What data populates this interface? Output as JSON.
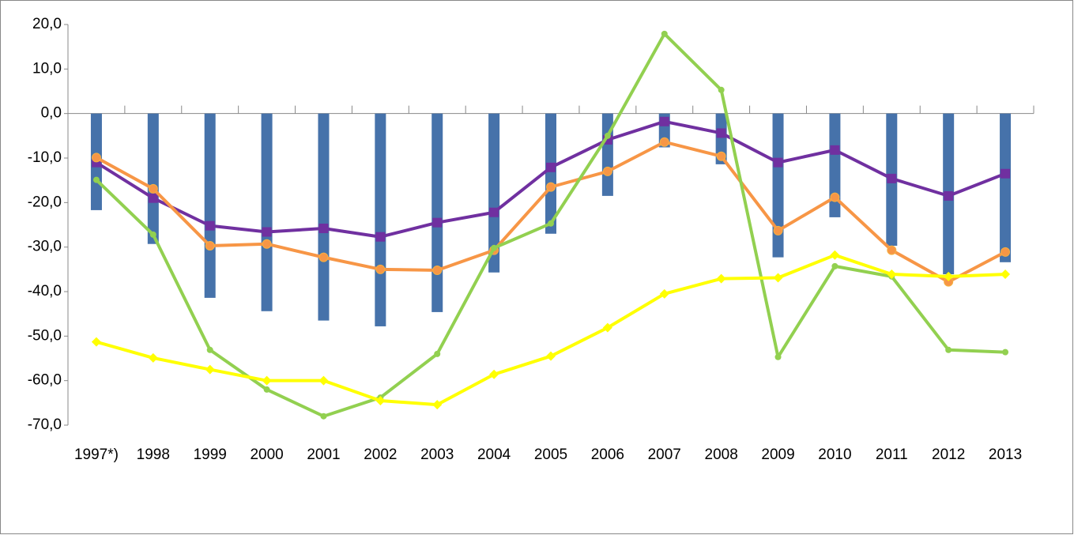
{
  "chart_data": {
    "type": "combo",
    "categories": [
      "1997*)",
      "1998",
      "1999",
      "2000",
      "2001",
      "2002",
      "2003",
      "2004",
      "2005",
      "2006",
      "2007",
      "2008",
      "2009",
      "2010",
      "2011",
      "2012",
      "2013"
    ],
    "ylim": [
      -70,
      20
    ],
    "yticks": [
      {
        "value": 20,
        "label": "20,0"
      },
      {
        "value": 10,
        "label": "10,0"
      },
      {
        "value": 0,
        "label": "0,0"
      },
      {
        "value": -10,
        "label": "-10,0"
      },
      {
        "value": -20,
        "label": "-20,0"
      },
      {
        "value": -30,
        "label": "-30,0"
      },
      {
        "value": -40,
        "label": "-40,0"
      },
      {
        "value": -50,
        "label": "-50,0"
      },
      {
        "value": -60,
        "label": "-60,0"
      },
      {
        "value": -70,
        "label": "-70,0"
      }
    ],
    "series": [
      {
        "type": "bar",
        "color": "#4672aa",
        "values": [
          -21.7,
          -29.3,
          -41.4,
          -44.4,
          -46.5,
          -47.8,
          -44.6,
          -35.7,
          -27.0,
          -18.5,
          -7.6,
          -11.4,
          -32.3,
          -23.3,
          -29.7,
          -36.1,
          -33.4
        ]
      },
      {
        "type": "line",
        "marker": "square",
        "color": "#7030a0",
        "values": [
          -11.0,
          -19.0,
          -25.2,
          -26.6,
          -25.8,
          -27.7,
          -24.5,
          -22.2,
          -12.1,
          -5.9,
          -1.8,
          -4.4,
          -11.0,
          -8.2,
          -14.6,
          -18.5,
          -13.5
        ]
      },
      {
        "type": "line",
        "marker": "circle",
        "color": "#f79646",
        "values": [
          -9.9,
          -16.9,
          -29.7,
          -29.3,
          -32.3,
          -35.0,
          -35.2,
          -30.7,
          -16.5,
          -13.0,
          -6.4,
          -9.6,
          -26.3,
          -18.8,
          -30.7,
          -37.8,
          -31.1
        ]
      },
      {
        "type": "line",
        "marker": "dot",
        "color": "#92d050",
        "values": [
          -14.9,
          -27.2,
          -53.1,
          -62.0,
          -68.0,
          -63.8,
          -54.0,
          -30.2,
          -24.7,
          -5.0,
          17.9,
          5.3,
          -54.7,
          -34.3,
          -36.6,
          -53.1,
          -53.6
        ]
      },
      {
        "type": "line",
        "marker": "diamond",
        "color": "#ffff00",
        "values": [
          -51.3,
          -54.9,
          -57.5,
          -60.0,
          -60.0,
          -64.5,
          -65.4,
          -58.6,
          -54.5,
          -48.1,
          -40.5,
          -37.1,
          -36.9,
          -31.8,
          -36.1,
          -36.6,
          -36.1
        ]
      }
    ]
  }
}
